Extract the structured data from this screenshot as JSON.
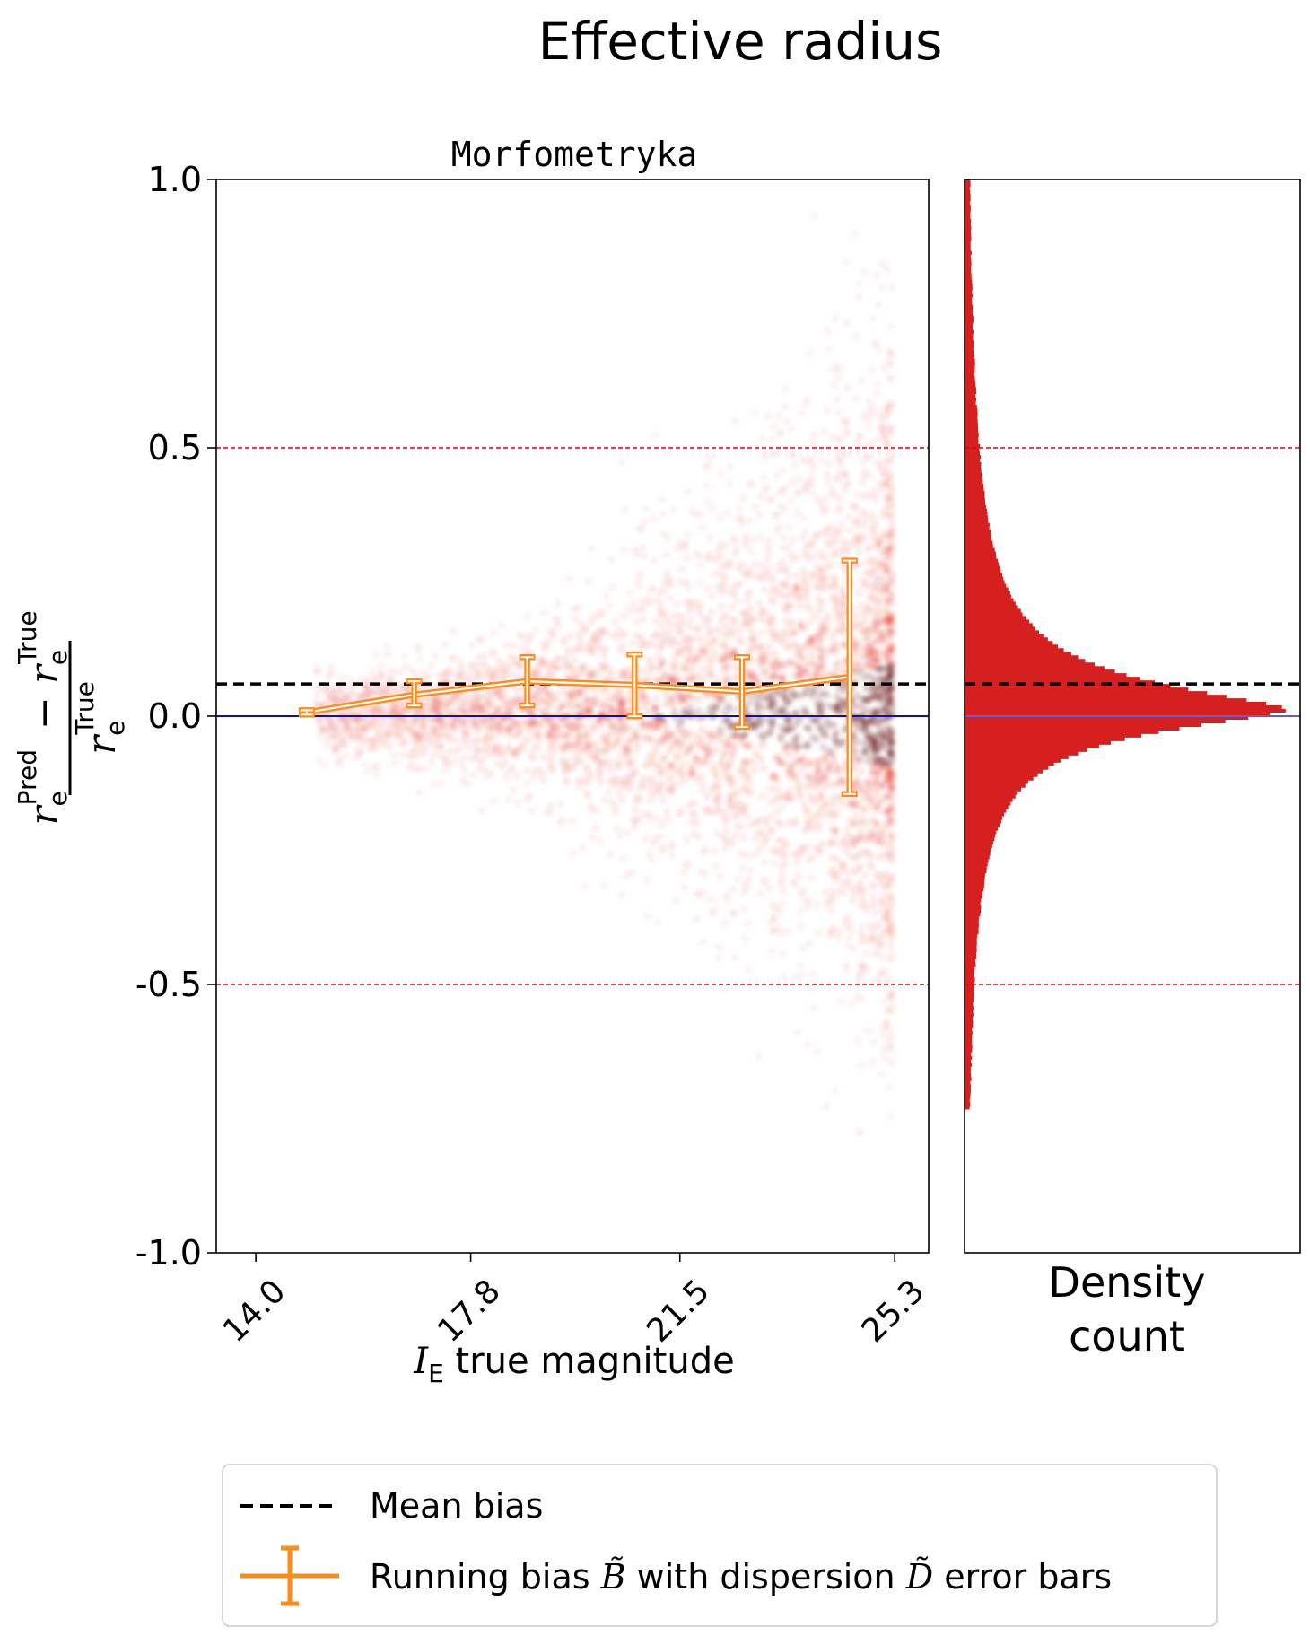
{
  "figure_title": "Effective radius",
  "colors": {
    "scatter": "#e0281e",
    "scatter_dark": "#5a0000",
    "histogram": "#d62020",
    "running_bias": "#ff8c1a",
    "mean_bias": "#000000",
    "zero_line": "#1010a0",
    "threshold_lines": "#e00000"
  },
  "chart_data": [
    {
      "type": "scatter",
      "title": "Morfometryka",
      "xlabel_symbol": "I",
      "xlabel_sub": "E",
      "xlabel_text": " true magnitude",
      "ylabel": "(r_e^Pred − r_e^True) / r_e^True",
      "xlim": [
        13.3,
        25.9
      ],
      "ylim": [
        -1.0,
        1.0
      ],
      "x_ticks": [
        "14.0",
        "17.8",
        "21.5",
        "25.3"
      ],
      "x_tick_values": [
        14.0,
        17.8,
        21.5,
        25.3
      ],
      "y_ticks": [
        "1.0",
        "0.5",
        "0.0",
        "-0.5",
        "-1.0"
      ],
      "y_tick_values": [
        1.0,
        0.5,
        0.0,
        -0.5,
        -1.0
      ],
      "threshold_lines": [
        0.5,
        -0.5
      ],
      "zero_line": 0.0,
      "mean_bias": 0.06,
      "running_bias": {
        "x": [
          14.9,
          16.8,
          18.8,
          20.7,
          22.6,
          24.5
        ],
        "y": [
          0.007,
          0.04,
          0.065,
          0.058,
          0.046,
          0.073
        ],
        "y_lower": [
          0.003,
          0.02,
          0.02,
          0.0,
          -0.02,
          -0.145
        ],
        "y_upper": [
          0.011,
          0.065,
          0.11,
          0.115,
          0.11,
          0.29
        ]
      },
      "grid": false
    },
    {
      "type": "histogram",
      "orientation": "horizontal",
      "xlabel_line1": "Density",
      "xlabel_line2": "count",
      "ylim": [
        -1.0,
        1.0
      ],
      "peak_y": 0.0,
      "mean_bias": 0.06,
      "threshold_lines": [
        0.5,
        -0.5
      ]
    }
  ],
  "legend": {
    "placement": "bottom-center",
    "items": [
      {
        "label": "Mean bias",
        "style": "dashed"
      },
      {
        "label_prefix": "Running bias ",
        "symbol_b": "B̃",
        "label_mid": " with dispersion ",
        "symbol_d": "D̃",
        "label_suffix": " error bars",
        "style": "errorbar"
      }
    ]
  }
}
